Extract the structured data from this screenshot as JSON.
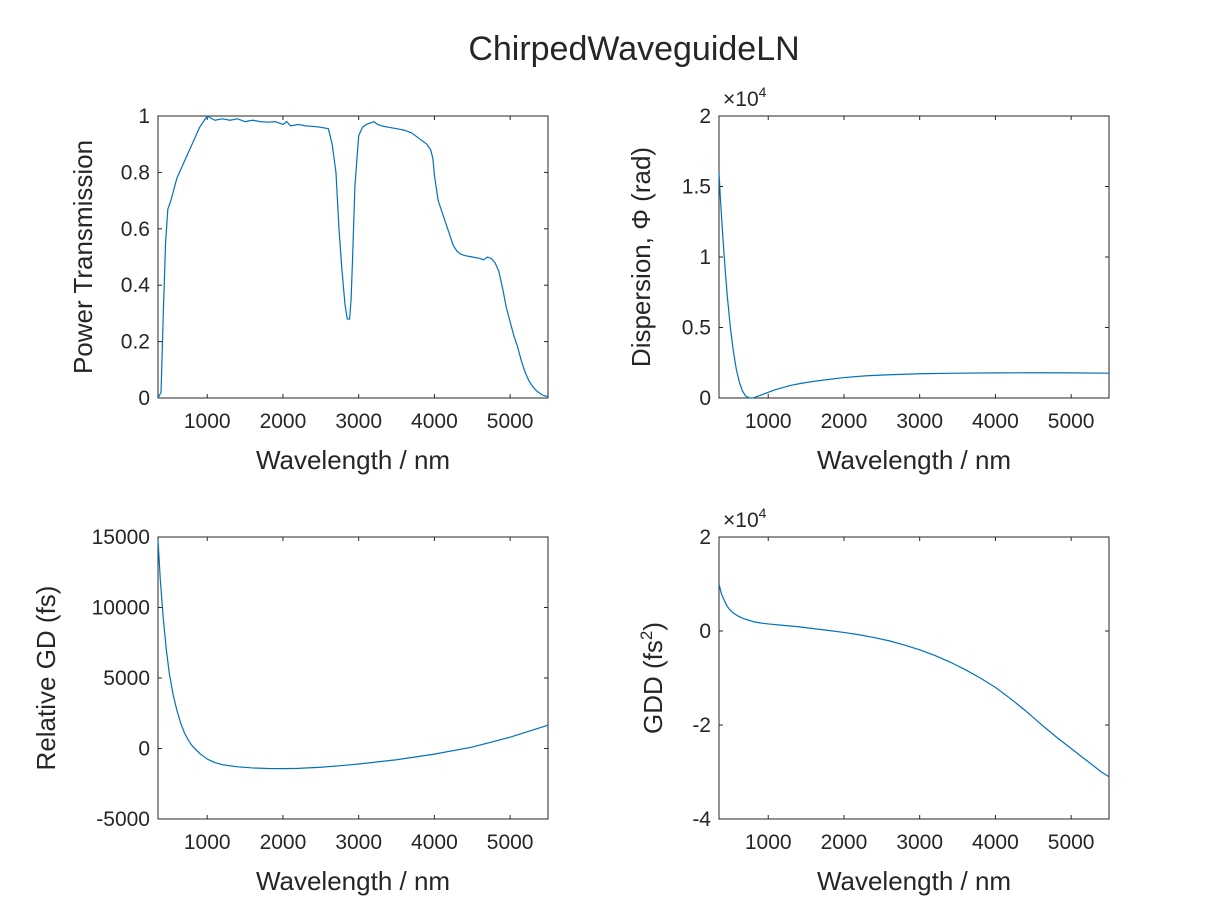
{
  "figure": {
    "title": "ChirpedWaveguideLN"
  },
  "chart_data": [
    {
      "type": "line",
      "xlabel": "Wavelength / nm",
      "ylabel": "Power Transmission",
      "xlim": [
        350,
        5500
      ],
      "ylim": [
        0,
        1
      ],
      "xticks": [
        1000,
        2000,
        3000,
        4000,
        5000
      ],
      "xtick_labels": [
        "1000",
        "2000",
        "3000",
        "4000",
        "5000"
      ],
      "yticks": [
        0,
        0.2,
        0.4,
        0.6,
        0.8,
        1
      ],
      "ytick_labels": [
        "0",
        "0.2",
        "0.4",
        "0.6",
        "0.8",
        "1"
      ],
      "exponent": null,
      "color": "#0072BD",
      "series": [
        {
          "x": [
            350,
            390,
            420,
            450,
            480,
            520,
            560,
            600,
            650,
            700,
            750,
            800,
            850,
            900,
            950,
            1000,
            1100,
            1200,
            1300,
            1400,
            1500,
            1600,
            1700,
            1800,
            1900,
            2000,
            2050,
            2100,
            2200,
            2300,
            2400,
            2500,
            2600,
            2650,
            2700,
            2740,
            2780,
            2820,
            2850,
            2880,
            2900,
            2920,
            2950,
            3000,
            3050,
            3100,
            3150,
            3200,
            3250,
            3300,
            3400,
            3500,
            3600,
            3700,
            3800,
            3850,
            3900,
            3950,
            3980,
            4000,
            4050,
            4100,
            4150,
            4200,
            4250,
            4300,
            4350,
            4400,
            4500,
            4600,
            4650,
            4700,
            4750,
            4800,
            4850,
            4900,
            4950,
            5000,
            5050,
            5100,
            5150,
            5200,
            5250,
            5300,
            5350,
            5400,
            5450,
            5500
          ],
          "y": [
            0,
            0.02,
            0.3,
            0.55,
            0.67,
            0.7,
            0.74,
            0.78,
            0.81,
            0.84,
            0.87,
            0.9,
            0.93,
            0.96,
            0.98,
            1.0,
            0.985,
            0.99,
            0.985,
            0.99,
            0.98,
            0.985,
            0.98,
            0.978,
            0.98,
            0.97,
            0.98,
            0.965,
            0.97,
            0.965,
            0.963,
            0.96,
            0.955,
            0.9,
            0.8,
            0.6,
            0.45,
            0.33,
            0.28,
            0.28,
            0.35,
            0.5,
            0.75,
            0.93,
            0.96,
            0.97,
            0.975,
            0.98,
            0.97,
            0.965,
            0.96,
            0.955,
            0.95,
            0.94,
            0.92,
            0.91,
            0.9,
            0.88,
            0.85,
            0.79,
            0.7,
            0.66,
            0.62,
            0.58,
            0.54,
            0.52,
            0.51,
            0.505,
            0.5,
            0.495,
            0.49,
            0.5,
            0.495,
            0.48,
            0.45,
            0.39,
            0.32,
            0.27,
            0.22,
            0.18,
            0.13,
            0.09,
            0.06,
            0.04,
            0.025,
            0.015,
            0.008,
            0.005
          ]
        }
      ]
    },
    {
      "type": "line",
      "xlabel": "Wavelength / nm",
      "ylabel": "Dispersion,  Φ  (rad)",
      "xlim": [
        350,
        5500
      ],
      "ylim": [
        0,
        2
      ],
      "xticks": [
        1000,
        2000,
        3000,
        4000,
        5000
      ],
      "xtick_labels": [
        "1000",
        "2000",
        "3000",
        "4000",
        "5000"
      ],
      "yticks": [
        0,
        0.5,
        1,
        1.5,
        2
      ],
      "ytick_labels": [
        "0",
        "0.5",
        "1",
        "1.5",
        "2"
      ],
      "exponent": {
        "base": "×10",
        "power": "4"
      },
      "color": "#0072BD",
      "series": [
        {
          "x": [
            350,
            370,
            400,
            430,
            460,
            500,
            540,
            580,
            620,
            660,
            700,
            750,
            800,
            850,
            900,
            1000,
            1100,
            1200,
            1300,
            1400,
            1500,
            1700,
            2000,
            2300,
            2600,
            3000,
            3500,
            4000,
            4500,
            5000,
            5500
          ],
          "y": [
            1.6,
            1.4,
            1.15,
            0.92,
            0.72,
            0.5,
            0.33,
            0.2,
            0.11,
            0.05,
            0.015,
            0.0,
            0.0,
            0.01,
            0.02,
            0.04,
            0.06,
            0.075,
            0.09,
            0.1,
            0.11,
            0.125,
            0.145,
            0.158,
            0.165,
            0.172,
            0.176,
            0.178,
            0.179,
            0.178,
            0.176
          ]
        }
      ]
    },
    {
      "type": "line",
      "xlabel": "Wavelength / nm",
      "ylabel": "Relative GD (fs)",
      "xlim": [
        350,
        5500
      ],
      "ylim": [
        -5000,
        15000
      ],
      "xticks": [
        1000,
        2000,
        3000,
        4000,
        5000
      ],
      "xtick_labels": [
        "1000",
        "2000",
        "3000",
        "4000",
        "5000"
      ],
      "yticks": [
        -5000,
        0,
        5000,
        10000,
        15000
      ],
      "ytick_labels": [
        "-5000",
        "0",
        "5000",
        "10000",
        "15000"
      ],
      "exponent": null,
      "color": "#0072BD",
      "series": [
        {
          "x": [
            350,
            380,
            420,
            460,
            500,
            550,
            600,
            650,
            700,
            750,
            800,
            900,
            1000,
            1100,
            1200,
            1400,
            1600,
            1800,
            2000,
            2200,
            2500,
            2800,
            3000,
            3500,
            4000,
            4500,
            5000,
            5500
          ],
          "y": [
            14800,
            12000,
            9200,
            7000,
            5300,
            3800,
            2700,
            1800,
            1100,
            600,
            200,
            -350,
            -750,
            -1000,
            -1150,
            -1300,
            -1380,
            -1420,
            -1430,
            -1410,
            -1330,
            -1200,
            -1100,
            -800,
            -400,
            100,
            800,
            1650
          ]
        }
      ]
    },
    {
      "type": "line",
      "xlabel": "Wavelength / nm",
      "ylabel": "GDD  (fs2)",
      "xlim": [
        350,
        5500
      ],
      "ylim": [
        -4,
        2
      ],
      "xticks": [
        1000,
        2000,
        3000,
        4000,
        5000
      ],
      "xtick_labels": [
        "1000",
        "2000",
        "3000",
        "4000",
        "5000"
      ],
      "yticks": [
        -4,
        -2,
        0,
        2
      ],
      "ytick_labels": [
        "-4",
        "-2",
        "0",
        "2"
      ],
      "exponent": {
        "base": "×10",
        "power": "4"
      },
      "color": "#0072BD",
      "series": [
        {
          "x": [
            350,
            380,
            420,
            460,
            500,
            550,
            600,
            650,
            700,
            800,
            900,
            1000,
            1200,
            1400,
            1600,
            1800,
            2000,
            2200,
            2400,
            2600,
            2800,
            3000,
            3200,
            3400,
            3600,
            3800,
            4000,
            4200,
            4400,
            4600,
            4800,
            5000,
            5200,
            5400,
            5500
          ],
          "y": [
            1.0,
            0.8,
            0.65,
            0.52,
            0.44,
            0.37,
            0.32,
            0.28,
            0.25,
            0.2,
            0.17,
            0.15,
            0.12,
            0.09,
            0.05,
            0.01,
            -0.03,
            -0.08,
            -0.14,
            -0.21,
            -0.3,
            -0.4,
            -0.52,
            -0.66,
            -0.82,
            -1.0,
            -1.2,
            -1.44,
            -1.7,
            -1.98,
            -2.25,
            -2.5,
            -2.75,
            -3.0,
            -3.1
          ]
        }
      ]
    }
  ]
}
